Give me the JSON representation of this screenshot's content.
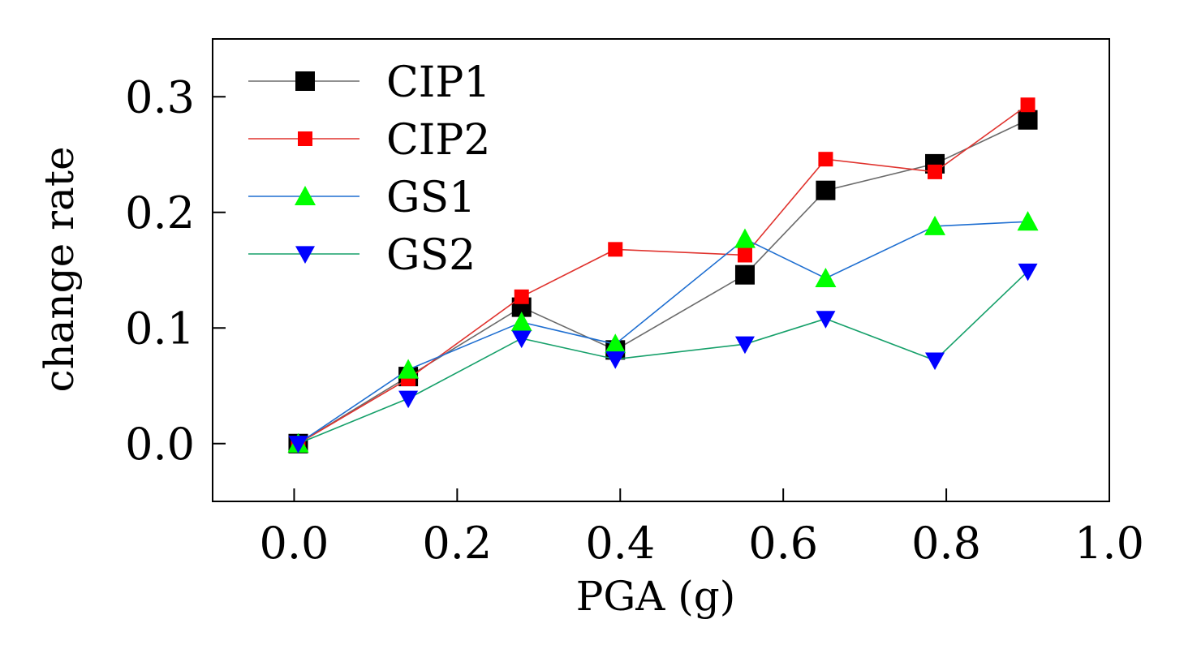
{
  "chart_data": {
    "type": "line",
    "xlabel": "PGA (g)",
    "ylabel": "change rate",
    "xlim": [
      -0.1,
      1.0
    ],
    "ylim": [
      -0.05,
      0.35
    ],
    "xticks": [
      "0.0",
      "0.2",
      "0.4",
      "0.6",
      "0.8",
      "1.0"
    ],
    "yticks": [
      "0.0",
      "0.1",
      "0.2",
      "0.3"
    ],
    "legend_position": "top-left",
    "series": [
      {
        "name": "CIP1",
        "color": "#6b6b6b",
        "marker": "square-large",
        "marker_color": "#000000",
        "x": [
          0.005,
          0.14,
          0.279,
          0.394,
          0.553,
          0.652,
          0.786,
          0.9
        ],
        "y": [
          0.0,
          0.058,
          0.118,
          0.081,
          0.146,
          0.219,
          0.242,
          0.28
        ]
      },
      {
        "name": "CIP2",
        "color": "#e0332e",
        "marker": "square",
        "marker_color": "#ff0000",
        "x": [
          0.005,
          0.14,
          0.279,
          0.394,
          0.553,
          0.652,
          0.786,
          0.9
        ],
        "y": [
          0.0,
          0.056,
          0.127,
          0.168,
          0.163,
          0.246,
          0.235,
          0.293
        ]
      },
      {
        "name": "GS1",
        "color": "#1f6fd1",
        "marker": "triangle-up",
        "marker_color": "#00ff00",
        "x": [
          0.005,
          0.14,
          0.279,
          0.394,
          0.553,
          0.652,
          0.786,
          0.9
        ],
        "y": [
          0.0,
          0.064,
          0.105,
          0.086,
          0.177,
          0.143,
          0.188,
          0.192
        ]
      },
      {
        "name": "GS2",
        "color": "#16a06a",
        "marker": "triangle-down",
        "marker_color": "#0000ff",
        "x": [
          0.005,
          0.14,
          0.279,
          0.394,
          0.553,
          0.652,
          0.786,
          0.9
        ],
        "y": [
          0.0,
          0.039,
          0.091,
          0.073,
          0.086,
          0.108,
          0.072,
          0.149
        ]
      }
    ]
  }
}
